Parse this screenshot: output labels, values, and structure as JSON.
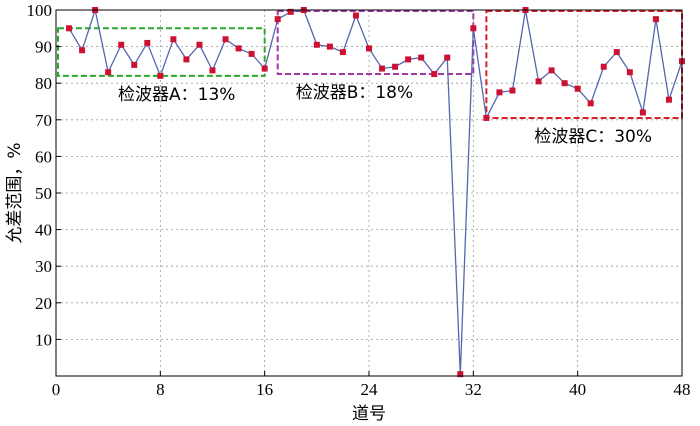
{
  "chart_data": {
    "type": "line",
    "xlabel": "道号",
    "ylabel": "允差范围，%",
    "xlim": [
      0,
      48
    ],
    "ylim": [
      0,
      100
    ],
    "xticks": [
      "0",
      "8",
      "16",
      "24",
      "32",
      "40",
      "48"
    ],
    "yticks": [
      "10",
      "20",
      "30",
      "40",
      "50",
      "60",
      "70",
      "80",
      "90",
      "100"
    ],
    "grid": true,
    "series": [
      {
        "color": "#5567b0",
        "marker_color": "#cc1133",
        "x": [
          1,
          2,
          3,
          4,
          5,
          6,
          7,
          8,
          9,
          10,
          11,
          12,
          13,
          14,
          15,
          16,
          17,
          18,
          19,
          20,
          21,
          22,
          23,
          24,
          25,
          26,
          27,
          28,
          29,
          30,
          31,
          32,
          33,
          34,
          35,
          36,
          37,
          38,
          39,
          40,
          41,
          42,
          43,
          44,
          45,
          46,
          47,
          48
        ],
        "y": [
          95,
          89,
          100,
          83,
          90.5,
          85,
          91,
          82,
          92,
          86.5,
          90.5,
          83.5,
          92,
          89.5,
          88,
          84,
          97.5,
          99.5,
          100,
          90.5,
          90,
          88.5,
          98.5,
          89.5,
          84,
          84.5,
          86.5,
          87,
          82.5,
          87,
          0.5,
          95,
          70.5,
          77.5,
          78,
          100,
          80.5,
          83.5,
          80,
          78.5,
          74.5,
          84.5,
          88.5,
          83,
          72,
          97.5,
          75.5,
          86
        ]
      }
    ],
    "regions": [
      {
        "label": "检波器A：13%",
        "x": [
          0,
          16
        ],
        "y": [
          82,
          95
        ],
        "color": "#2aa82a"
      },
      {
        "label": "检波器B：18%",
        "x": [
          17,
          32
        ],
        "y": [
          82.5,
          100
        ],
        "color": "#a23aa6"
      },
      {
        "label": "检波器C：30%",
        "x": [
          33,
          48
        ],
        "y": [
          70.5,
          100
        ],
        "color": "#dd1f2a"
      }
    ]
  }
}
